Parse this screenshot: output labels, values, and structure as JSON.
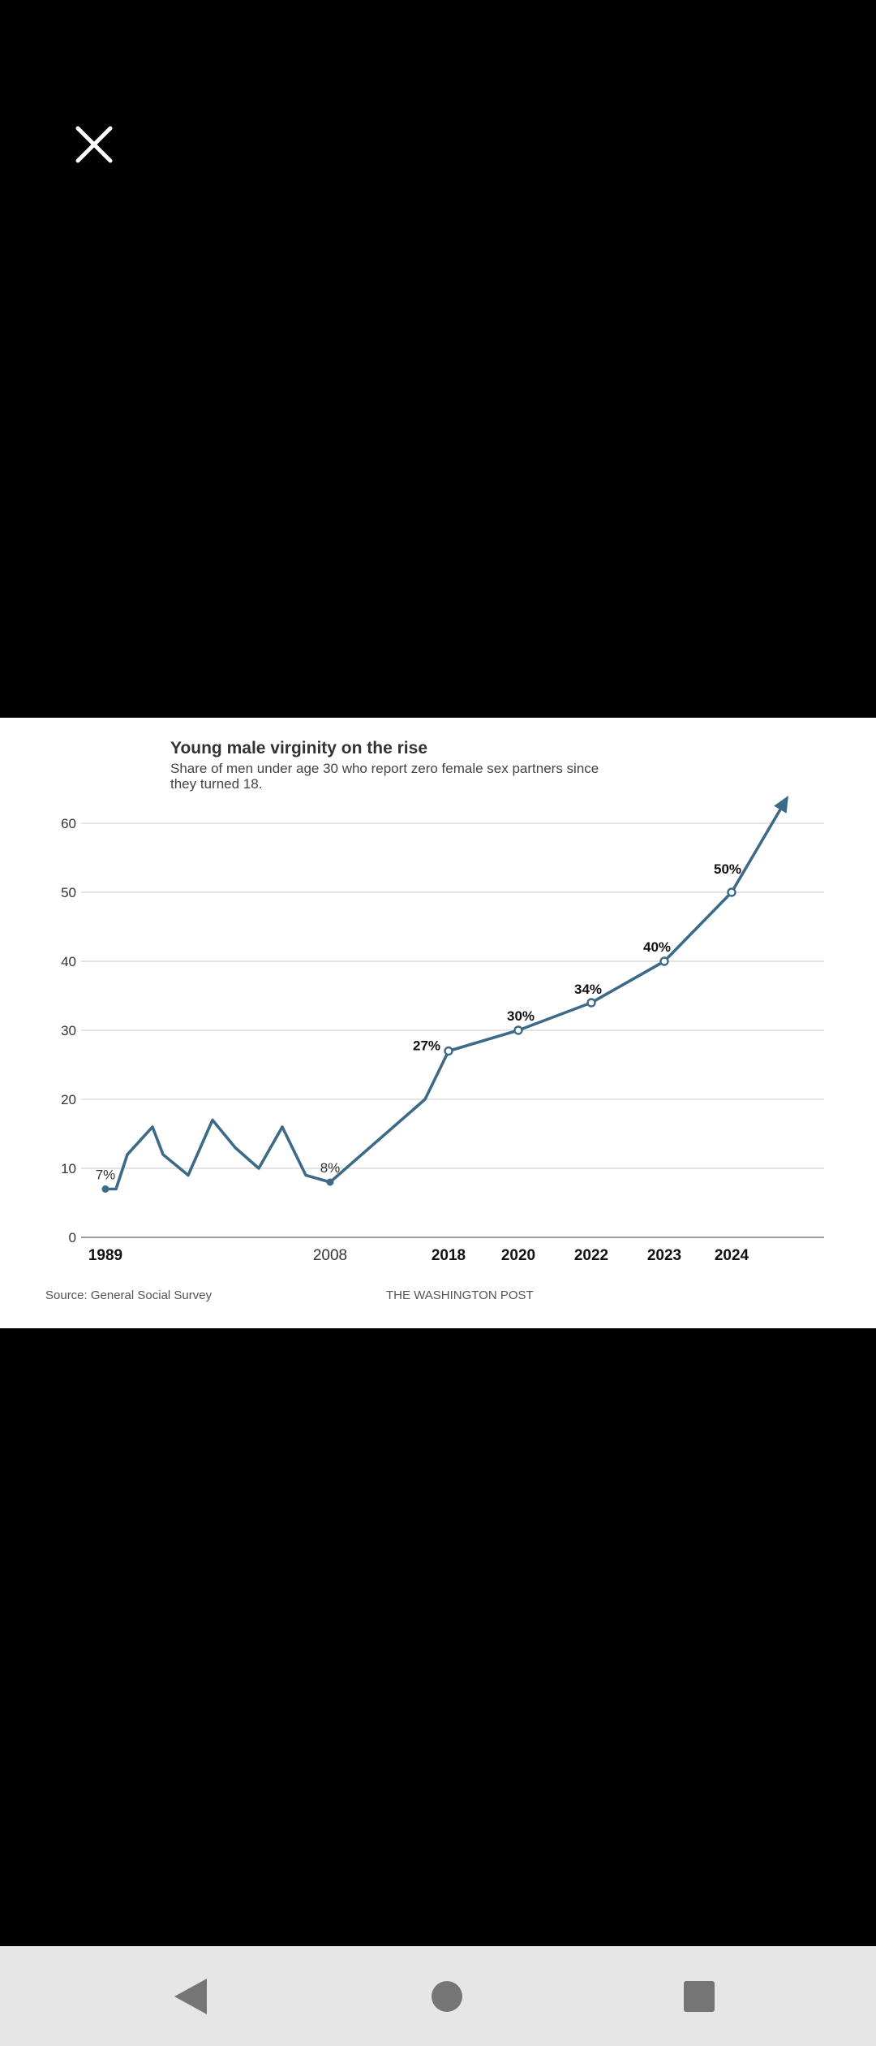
{
  "viewer": {
    "close_icon": "close-icon",
    "icon_color": "#ffffff"
  },
  "chart_data": {
    "type": "line",
    "title": "Young male virginity on the rise",
    "subtitle_lines": [
      "Share of men under age 30 who report zero female sex partners since",
      "they turned 18."
    ],
    "xlabel": "",
    "ylabel": "",
    "ylim": [
      0,
      60
    ],
    "yticks": [
      0,
      10,
      20,
      30,
      40,
      50,
      60
    ],
    "grid": true,
    "legend": "none",
    "line_color": "#3d6a86",
    "x_tick_labels": [
      {
        "label": "1989",
        "x": 1989,
        "bold": true
      },
      {
        "label": "2008",
        "x": 2008,
        "bold": false
      },
      {
        "label": "2018",
        "x": 2018,
        "bold": true
      },
      {
        "label": "2020",
        "x": 2020,
        "bold": true
      },
      {
        "label": "2022",
        "x": 2022,
        "bold": true
      },
      {
        "label": "2023",
        "x": 2023,
        "bold": true
      },
      {
        "label": "2024",
        "x": 2024,
        "bold": true
      }
    ],
    "series": [
      {
        "name": "Share of men under 30 with zero female partners since 18",
        "points": [
          [
            1989,
            7
          ],
          [
            1990,
            7
          ],
          [
            1991,
            12
          ],
          [
            1993,
            16
          ],
          [
            1994,
            12
          ],
          [
            1996,
            9
          ],
          [
            1998,
            17
          ],
          [
            2000,
            13
          ],
          [
            2002,
            10
          ],
          [
            2004,
            16
          ],
          [
            2006,
            9
          ],
          [
            2008,
            8
          ],
          [
            2016,
            20
          ],
          [
            2018,
            27
          ],
          [
            2020,
            30
          ],
          [
            2022,
            34
          ],
          [
            2023,
            40
          ],
          [
            2024,
            50
          ],
          [
            2025,
            64
          ]
        ]
      }
    ],
    "annotations": [
      {
        "label": "7%",
        "x": 1989,
        "y": 7,
        "bold": false,
        "marker": "dot"
      },
      {
        "label": "8%",
        "x": 2008,
        "y": 8,
        "bold": false,
        "marker": "dot"
      },
      {
        "label": "27%",
        "x": 2018,
        "y": 27,
        "bold": true,
        "marker": "ring"
      },
      {
        "label": "30%",
        "x": 2020,
        "y": 30,
        "bold": true,
        "marker": "ring"
      },
      {
        "label": "34%",
        "x": 2022,
        "y": 34,
        "bold": true,
        "marker": "ring"
      },
      {
        "label": "40%",
        "x": 2023,
        "y": 40,
        "bold": true,
        "marker": "ring"
      },
      {
        "label": "50%",
        "x": 2024,
        "y": 50,
        "bold": true,
        "marker": "ring"
      }
    ],
    "source": "Source: General Social Survey",
    "credit": "THE WASHINGTON POST"
  },
  "navbar": {
    "back_icon": "back-triangle-icon",
    "home_icon": "home-circle-icon",
    "recents_icon": "recents-square-icon",
    "icon_color": "#757575"
  }
}
